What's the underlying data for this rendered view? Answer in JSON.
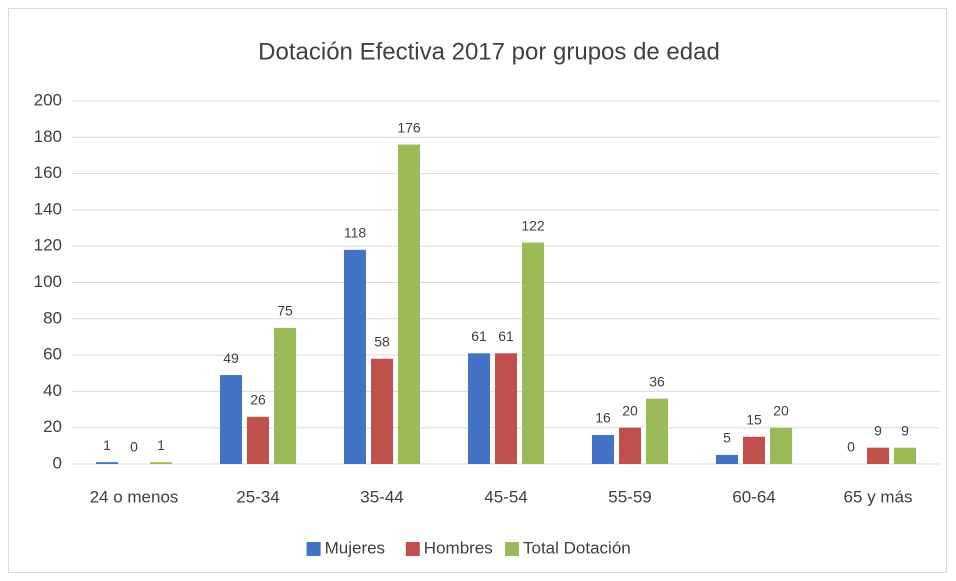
{
  "chart_data": {
    "type": "bar",
    "title": "Dotación Efectiva 2017 por grupos de edad",
    "categories": [
      "24 o menos",
      "25-34",
      "35-44",
      "45-54",
      "55-59",
      "60-64",
      "65 y más"
    ],
    "series": [
      {
        "name": "Mujeres",
        "color": "#4472c4",
        "values": [
          1,
          49,
          118,
          61,
          16,
          5,
          0
        ]
      },
      {
        "name": "Hombres",
        "color": "#c0504d",
        "values": [
          0,
          26,
          58,
          61,
          20,
          15,
          9
        ]
      },
      {
        "name": "Total Dotación",
        "color": "#9bbb59",
        "values": [
          1,
          75,
          176,
          122,
          36,
          20,
          9
        ]
      }
    ],
    "ylim": [
      0,
      200
    ],
    "yticks": [
      0,
      20,
      40,
      60,
      80,
      100,
      120,
      140,
      160,
      180,
      200
    ],
    "grid": true,
    "legend": "bottom"
  }
}
